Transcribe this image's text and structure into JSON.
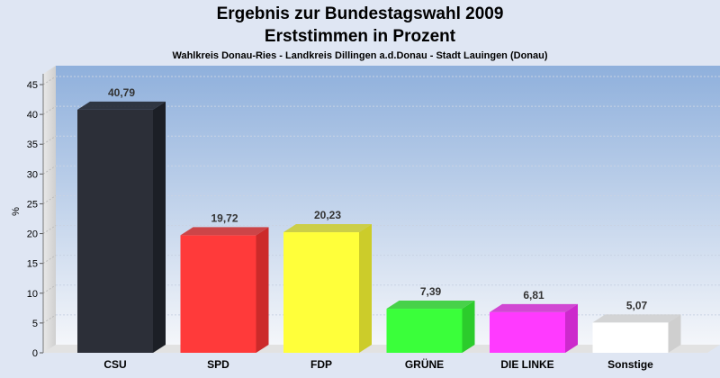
{
  "chart_data": {
    "type": "bar",
    "title": "Ergebnis zur Bundestagswahl 2009",
    "subtitle": "Erststimmen in Prozent",
    "subsubtitle": "Wahlkreis Donau-Ries - Landkreis Dillingen a.d.Donau - Stadt Lauingen (Donau)",
    "ylabel": "%",
    "xlabel": "",
    "ylim": [
      0,
      45
    ],
    "yticks": [
      0,
      5,
      10,
      15,
      20,
      25,
      30,
      35,
      40,
      45
    ],
    "grid": true,
    "categories": [
      "CSU",
      "SPD",
      "FDP",
      "GRÜNE",
      "DIE LINKE",
      "Sonstige"
    ],
    "values": [
      40.79,
      19.72,
      20.23,
      7.39,
      6.81,
      5.07
    ],
    "labels": [
      "40,79",
      "19,72",
      "20,23",
      "7,39",
      "6,81",
      "5,07"
    ],
    "colors": [
      "#2c2f38",
      "#ff3a3a",
      "#ffff3a",
      "#3aff3a",
      "#ff3aff",
      "#ffffff"
    ],
    "side_colors": [
      "#1c1f26",
      "#cc2a2a",
      "#cccc2a",
      "#2ccc2c",
      "#cc2acc",
      "#cfcfcf"
    ]
  }
}
